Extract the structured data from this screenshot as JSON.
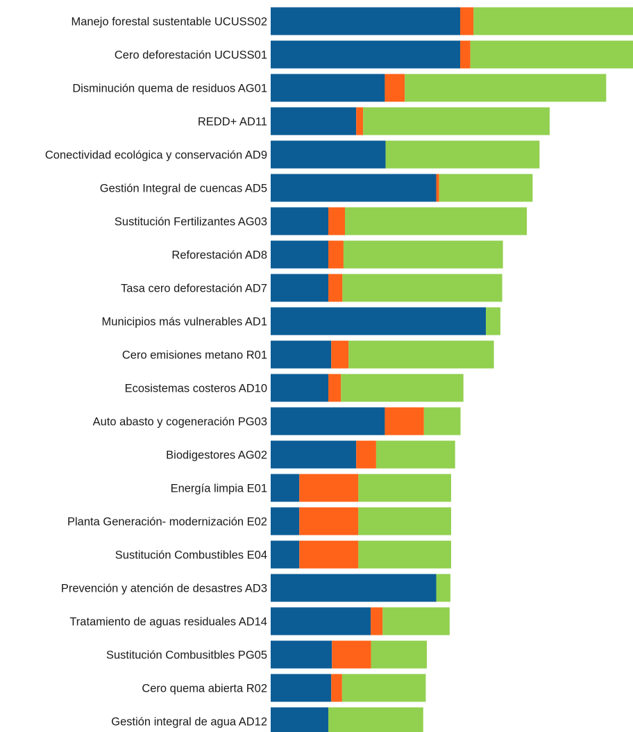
{
  "chart_data": {
    "type": "bar",
    "orientation": "horizontal",
    "stacked": true,
    "title": "",
    "xlabel": "",
    "ylabel": "",
    "grid": false,
    "legend": "none",
    "xlim": [
      0,
      100
    ],
    "categories": [
      "Manejo forestal sustentable UCUSS02",
      "Cero deforestación UCUSS01",
      "Disminución quema de residuos AG01",
      "REDD+ AD11",
      "Conectividad ecológica y conservación AD9",
      "Gestión Integral de cuencas AD5",
      "Sustitución Fertilizantes AG03",
      "Reforestación  AD8",
      "Tasa cero deforestación AD7",
      "Municipios más vulnerables AD1",
      "Cero emisiones metano R01",
      "Ecosistemas costeros AD10",
      "Auto abasto y cogeneración PG03",
      "Biodigestores AG02",
      "Energía limpia E01",
      "Planta Generación- modernización E02",
      "Sustitución Combustibles E04",
      "Prevención y atención de desastres AD3",
      "Tratamiento de aguas residuales AD14",
      "Sustitución Combusitbles PG05",
      "Cero quema abierta R02",
      "Gestión integral de agua AD12"
    ],
    "series": [
      {
        "color": "#0c5d96",
        "values": [
          52.3,
          52.3,
          31.5,
          23.6,
          31.7,
          45.7,
          15.9,
          15.9,
          15.9,
          59.4,
          16.7,
          15.9,
          31.5,
          23.6,
          7.9,
          7.9,
          7.9,
          45.7,
          27.6,
          16.9,
          16.7,
          15.9
        ]
      },
      {
        "color": "#ff6319",
        "values": [
          3.7,
          2.8,
          5.5,
          1.9,
          0,
          0.8,
          4.6,
          4.2,
          3.9,
          0,
          4.8,
          3.5,
          10.8,
          5.5,
          16.3,
          16.3,
          16.3,
          0,
          3.3,
          10.8,
          3.0,
          0
        ]
      },
      {
        "color": "#92d050",
        "values": [
          44.0,
          44.9,
          55.6,
          51.5,
          42.5,
          25.8,
          50.2,
          44.0,
          44.1,
          4.0,
          40.1,
          33.8,
          10.1,
          21.8,
          25.6,
          25.6,
          25.6,
          3.9,
          18.5,
          15.4,
          23.1,
          26.2
        ]
      }
    ]
  }
}
